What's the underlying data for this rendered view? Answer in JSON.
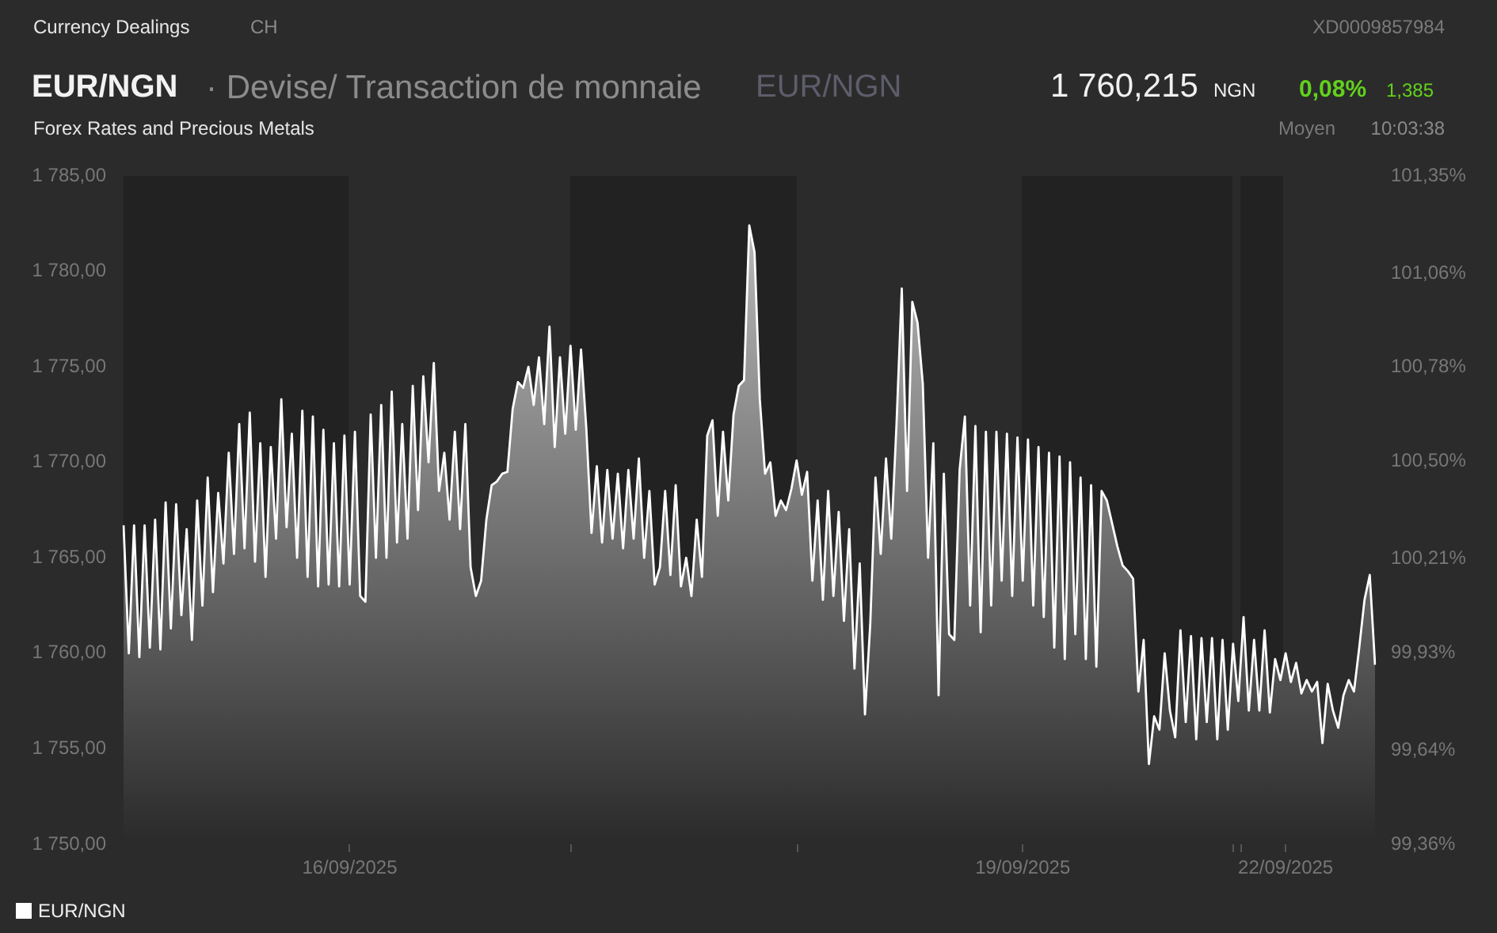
{
  "chart_data": {
    "type": "area",
    "title": "EUR/NGN",
    "subtitle": "· Devise/ Transaction de monnaie",
    "annotations": [
      "Currency Dealings",
      "CH",
      "XD0009857984",
      "EUR/NGN",
      "1 760,215",
      "NGN",
      "0,08%",
      "1,385",
      "Forex Rates and Precious Metals",
      "Moyen",
      "10:03:38"
    ],
    "categories": [
      null,
      null,
      null,
      null,
      null,
      null,
      null,
      null,
      null,
      null,
      null,
      null,
      null,
      null,
      null,
      null,
      null,
      null,
      null,
      null,
      null,
      null,
      null,
      null,
      null,
      null,
      null,
      null,
      null,
      null,
      null,
      null,
      null,
      null,
      null,
      null,
      null,
      null,
      null,
      null,
      null,
      null,
      null,
      "16/09/2025",
      null,
      null,
      null,
      null,
      null,
      null,
      null,
      null,
      null,
      null,
      null,
      null,
      null,
      null,
      null,
      null,
      null,
      null,
      null,
      null,
      null,
      null,
      null,
      null,
      null,
      null,
      null,
      null,
      null,
      null,
      null,
      null,
      null,
      null,
      null,
      null,
      null,
      null,
      null,
      null,
      null,
      null,
      null,
      null,
      null,
      null,
      null,
      null,
      null,
      null,
      null,
      null,
      null,
      null,
      null,
      null,
      null,
      null,
      null,
      null,
      null,
      null,
      null,
      null,
      null,
      null,
      null,
      null,
      null,
      null,
      null,
      null,
      null,
      null,
      null,
      null,
      null,
      null,
      null,
      null,
      null,
      null,
      null,
      null,
      null,
      null,
      null,
      null,
      null,
      null,
      null,
      null,
      null,
      null,
      null,
      null,
      null,
      null,
      null,
      null,
      null,
      null,
      null,
      null,
      null,
      null,
      null,
      null,
      null,
      null,
      null,
      null,
      null,
      null,
      null,
      null,
      null,
      null,
      null,
      null,
      null,
      null,
      null,
      null,
      null,
      null,
      null,
      "19/09/2025",
      null,
      null,
      null,
      null,
      null,
      null,
      null,
      null,
      null,
      null,
      null,
      null,
      null,
      null,
      null,
      null,
      null,
      null,
      null,
      null,
      null,
      null,
      null,
      null,
      null,
      null,
      null,
      null,
      null,
      null,
      null,
      null,
      null,
      null,
      null,
      null,
      null,
      null,
      null,
      null,
      null,
      null,
      null,
      null,
      null,
      null,
      null,
      null,
      null,
      "22/09/2025",
      null,
      null,
      null,
      null,
      null,
      null,
      null,
      null,
      null,
      null,
      null,
      null,
      null,
      null,
      null,
      null,
      null
    ],
    "series": [
      {
        "name": "EUR/NGN",
        "color": "#ffffff",
        "values": [
          1766.7,
          1760.0,
          1766.7,
          1759.8,
          1766.7,
          1760.3,
          1767.0,
          1760.2,
          1767.9,
          1761.3,
          1767.8,
          1762.0,
          1766.5,
          1760.7,
          1768.0,
          1762.5,
          1769.2,
          1763.2,
          1768.4,
          1764.7,
          1770.5,
          1765.2,
          1772.0,
          1765.5,
          1772.6,
          1764.8,
          1771.0,
          1764.0,
          1770.8,
          1766.0,
          1773.3,
          1766.6,
          1771.5,
          1765.0,
          1772.7,
          1764.0,
          1772.4,
          1763.5,
          1771.7,
          1763.6,
          1771.0,
          1763.5,
          1771.4,
          1763.6,
          1771.6,
          1763.0,
          1762.7,
          1772.5,
          1765.0,
          1773.0,
          1765.0,
          1773.7,
          1765.8,
          1772.0,
          1766.0,
          1774.0,
          1767.5,
          1774.5,
          1770.0,
          1775.2,
          1768.5,
          1770.5,
          1767.0,
          1771.6,
          1766.5,
          1772.0,
          1764.5,
          1763.0,
          1763.8,
          1767.0,
          1768.8,
          1769.0,
          1769.4,
          1769.5,
          1772.8,
          1774.2,
          1773.9,
          1775.0,
          1773.0,
          1775.5,
          1772.0,
          1777.1,
          1770.8,
          1775.5,
          1771.5,
          1776.1,
          1771.7,
          1775.9,
          1771.8,
          1766.3,
          1769.8,
          1765.8,
          1769.6,
          1766.0,
          1769.4,
          1765.5,
          1769.6,
          1766.0,
          1770.2,
          1765.0,
          1768.5,
          1763.6,
          1764.5,
          1768.5,
          1764.1,
          1768.8,
          1763.5,
          1765.0,
          1763.0,
          1767.0,
          1764.0,
          1771.4,
          1772.2,
          1767.2,
          1771.6,
          1768.0,
          1772.5,
          1774.0,
          1774.3,
          1782.4,
          1781.0,
          1773.3,
          1769.4,
          1770.0,
          1767.2,
          1768.0,
          1767.5,
          1768.6,
          1770.1,
          1768.3,
          1769.5,
          1763.8,
          1768.0,
          1762.8,
          1768.5,
          1763.0,
          1767.4,
          1761.7,
          1766.5,
          1759.2,
          1764.7,
          1756.8,
          1761.5,
          1769.2,
          1765.2,
          1770.2,
          1766.0,
          1772.0,
          1779.1,
          1768.5,
          1778.4,
          1777.3,
          1774.1,
          1765.0,
          1771.0,
          1757.8,
          1769.4,
          1761.0,
          1760.7,
          1769.6,
          1772.4,
          1762.5,
          1771.9,
          1761.1,
          1771.6,
          1762.5,
          1771.6,
          1763.8,
          1771.5,
          1763.0,
          1771.3,
          1763.8,
          1771.2,
          1762.5,
          1770.8,
          1761.9,
          1770.5,
          1760.3,
          1770.3,
          1759.7,
          1770.0,
          1761.0,
          1769.2,
          1759.7,
          1768.8,
          1759.3,
          1768.5,
          1768.0,
          1766.8,
          1765.6,
          1764.6,
          1764.3,
          1763.9,
          1758.0,
          1760.7,
          1754.2,
          1756.7,
          1756.0,
          1760.0,
          1757.0,
          1755.6,
          1761.2,
          1756.4,
          1760.9,
          1755.5,
          1760.8,
          1756.4,
          1760.8,
          1755.5,
          1760.7,
          1756.0,
          1760.5,
          1757.5,
          1761.9,
          1757.0,
          1760.7,
          1757.0,
          1761.2,
          1756.9,
          1759.7,
          1758.6,
          1760.0,
          1758.5,
          1759.5,
          1757.9,
          1758.6,
          1758.0,
          1758.5,
          1755.3,
          1758.4,
          1757.0,
          1756.1,
          1757.8,
          1758.6,
          1758.0,
          1760.3,
          1762.8,
          1764.1,
          1759.4
        ]
      }
    ],
    "ylim": [
      1750,
      1785
    ],
    "yticks": [
      {
        "value": 1750,
        "label": "1 750,00"
      },
      {
        "value": 1755,
        "label": "1 755,00"
      },
      {
        "value": 1760,
        "label": "1 760,00"
      },
      {
        "value": 1765,
        "label": "1 765,00"
      },
      {
        "value": 1770,
        "label": "1 770,00"
      },
      {
        "value": 1775,
        "label": "1 775,00"
      },
      {
        "value": 1780,
        "label": "1 780,00"
      },
      {
        "value": 1785,
        "label": "1 785,00"
      }
    ],
    "y2lim": [
      99.36,
      101.35
    ],
    "y2ticks": [
      {
        "value": 99.36,
        "label": "99,36%"
      },
      {
        "value": 99.64,
        "label": "99,64%"
      },
      {
        "value": 99.93,
        "label": "99,93%"
      },
      {
        "value": 100.21,
        "label": "100,21%"
      },
      {
        "value": 100.5,
        "label": "100,50%"
      },
      {
        "value": 100.78,
        "label": "100,78%"
      },
      {
        "value": 101.06,
        "label": "101,06%"
      },
      {
        "value": 101.35,
        "label": "101,35%"
      }
    ],
    "legend": "bottom left"
  }
}
